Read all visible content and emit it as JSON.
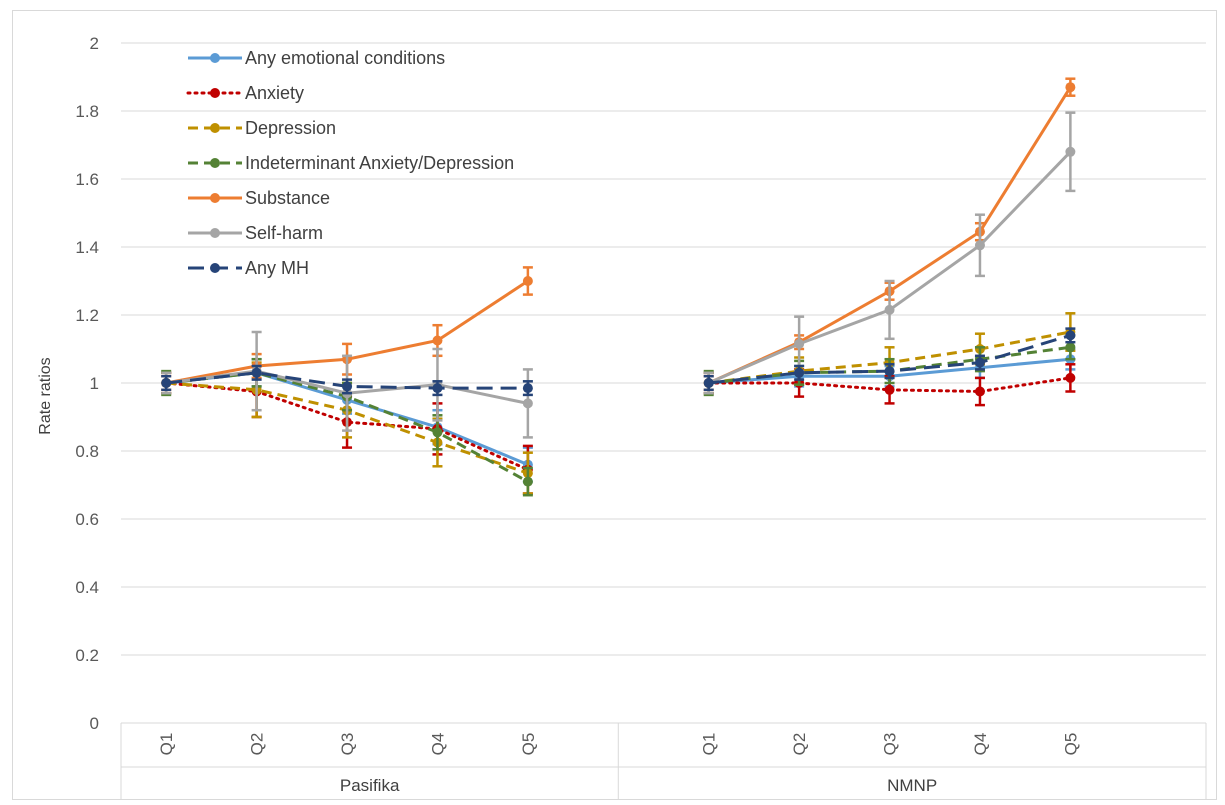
{
  "chart_data": {
    "type": "line",
    "ylabel": "Rate ratios",
    "ylim": [
      0,
      2
    ],
    "yticks": [
      "0",
      "0.2",
      "0.4",
      "0.6",
      "0.8",
      "1",
      "1.2",
      "1.4",
      "1.6",
      "1.8",
      "2"
    ],
    "grid": true,
    "legend_position": "top-left",
    "groups": [
      {
        "name": "Pasifika",
        "categories": [
          "Q1",
          "Q2",
          "Q3",
          "Q4",
          "Q5"
        ]
      },
      {
        "name": "NMNP",
        "categories": [
          "Q1",
          "Q2",
          "Q3",
          "Q4",
          "Q5"
        ]
      }
    ],
    "series": [
      {
        "name": "Any emotional conditions",
        "color": "#5b9bd5",
        "dash": "solid",
        "values": [
          [
            1.0,
            1.03,
            0.95,
            0.87,
            0.76
          ],
          [
            1.0,
            1.02,
            1.02,
            1.045,
            1.07
          ]
        ],
        "err": [
          [
            0.03,
            0.04,
            0.04,
            0.05,
            0.05
          ],
          [
            0.03,
            0.03,
            0.03,
            0.03,
            0.03
          ]
        ]
      },
      {
        "name": "Anxiety",
        "color": "#c00000",
        "dash": "dotted",
        "values": [
          [
            1.0,
            0.975,
            0.885,
            0.865,
            0.745
          ],
          [
            1.0,
            1.0,
            0.98,
            0.975,
            1.015
          ]
        ],
        "err": [
          [
            0.03,
            0.075,
            0.075,
            0.075,
            0.07
          ],
          [
            0.03,
            0.04,
            0.04,
            0.04,
            0.04
          ]
        ]
      },
      {
        "name": "Depression",
        "color": "#bf9000",
        "dash": "dashed",
        "values": [
          [
            1.0,
            0.98,
            0.92,
            0.825,
            0.735
          ],
          [
            1.0,
            1.035,
            1.06,
            1.1,
            1.15
          ]
        ],
        "err": [
          [
            0.03,
            0.08,
            0.08,
            0.07,
            0.06
          ],
          [
            0.03,
            0.04,
            0.045,
            0.045,
            0.055
          ]
        ]
      },
      {
        "name": "Indeterminant Anxiety/Depression",
        "color": "#548235",
        "dash": "dashed",
        "values": [
          [
            1.0,
            1.03,
            0.96,
            0.855,
            0.71
          ],
          [
            1.0,
            1.03,
            1.035,
            1.07,
            1.105
          ]
        ],
        "err": [
          [
            0.035,
            0.04,
            0.04,
            0.05,
            0.04
          ],
          [
            0.035,
            0.035,
            0.035,
            0.035,
            0.035
          ]
        ]
      },
      {
        "name": "Substance",
        "color": "#ed7d31",
        "dash": "solid",
        "values": [
          [
            1.0,
            1.05,
            1.07,
            1.125,
            1.3
          ],
          [
            1.0,
            1.12,
            1.27,
            1.445,
            1.87
          ]
        ],
        "err": [
          [
            0.02,
            0.035,
            0.045,
            0.045,
            0.04
          ],
          [
            0.02,
            0.02,
            0.025,
            0.025,
            0.025
          ]
        ]
      },
      {
        "name": "Self-harm",
        "color": "#a5a5a5",
        "dash": "solid",
        "values": [
          [
            1.0,
            1.035,
            0.97,
            0.995,
            0.94
          ],
          [
            1.0,
            1.115,
            1.215,
            1.405,
            1.68
          ]
        ],
        "err": [
          [
            0.03,
            0.115,
            0.11,
            0.105,
            0.1
          ],
          [
            0.03,
            0.08,
            0.085,
            0.09,
            0.115
          ]
        ]
      },
      {
        "name": "Any MH",
        "color": "#264478",
        "dash": "longdash",
        "values": [
          [
            1.0,
            1.03,
            0.99,
            0.985,
            0.985
          ],
          [
            1.0,
            1.03,
            1.035,
            1.06,
            1.14
          ]
        ],
        "err": [
          [
            0.02,
            0.02,
            0.02,
            0.02,
            0.02
          ],
          [
            0.02,
            0.02,
            0.02,
            0.02,
            0.02
          ]
        ]
      }
    ]
  }
}
